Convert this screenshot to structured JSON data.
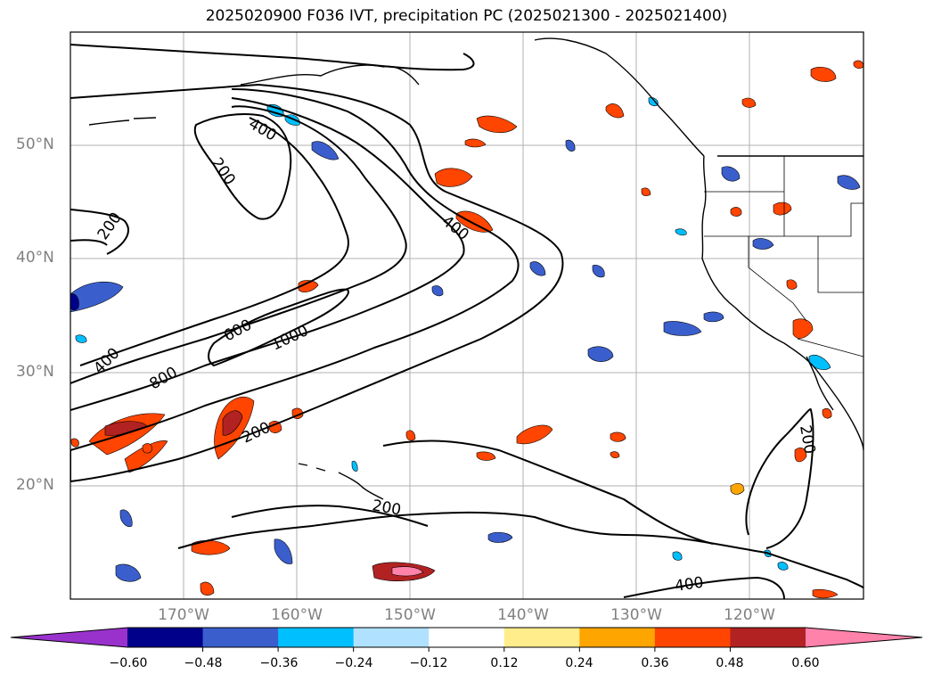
{
  "title": "2025020900 F036 IVT, precipitation PC (2025021300 - 2025021400)",
  "lat_labels": [
    "50°N",
    "40°N",
    "30°N",
    "20°N"
  ],
  "lon_labels": [
    "170°W",
    "160°W",
    "150°W",
    "140°W",
    "130°W",
    "120°W"
  ],
  "contour_labels": [
    "400",
    "200",
    "200",
    "400",
    "600",
    "1000",
    "400",
    "800",
    "200",
    "200",
    "200",
    "400"
  ],
  "colorbar": {
    "ticks": [
      "−0.60",
      "−0.48",
      "−0.36",
      "−0.24",
      "−0.12",
      "0.12",
      "0.24",
      "0.36",
      "0.48",
      "0.60"
    ],
    "colors": [
      "#9932CC",
      "#00008B",
      "#3A5FCD",
      "#00BFFF",
      "#B0E2FF",
      "#FFFFFF",
      "#FFEC8B",
      "#FFA500",
      "#FF4500",
      "#B22222",
      "#FF82AB"
    ]
  }
}
